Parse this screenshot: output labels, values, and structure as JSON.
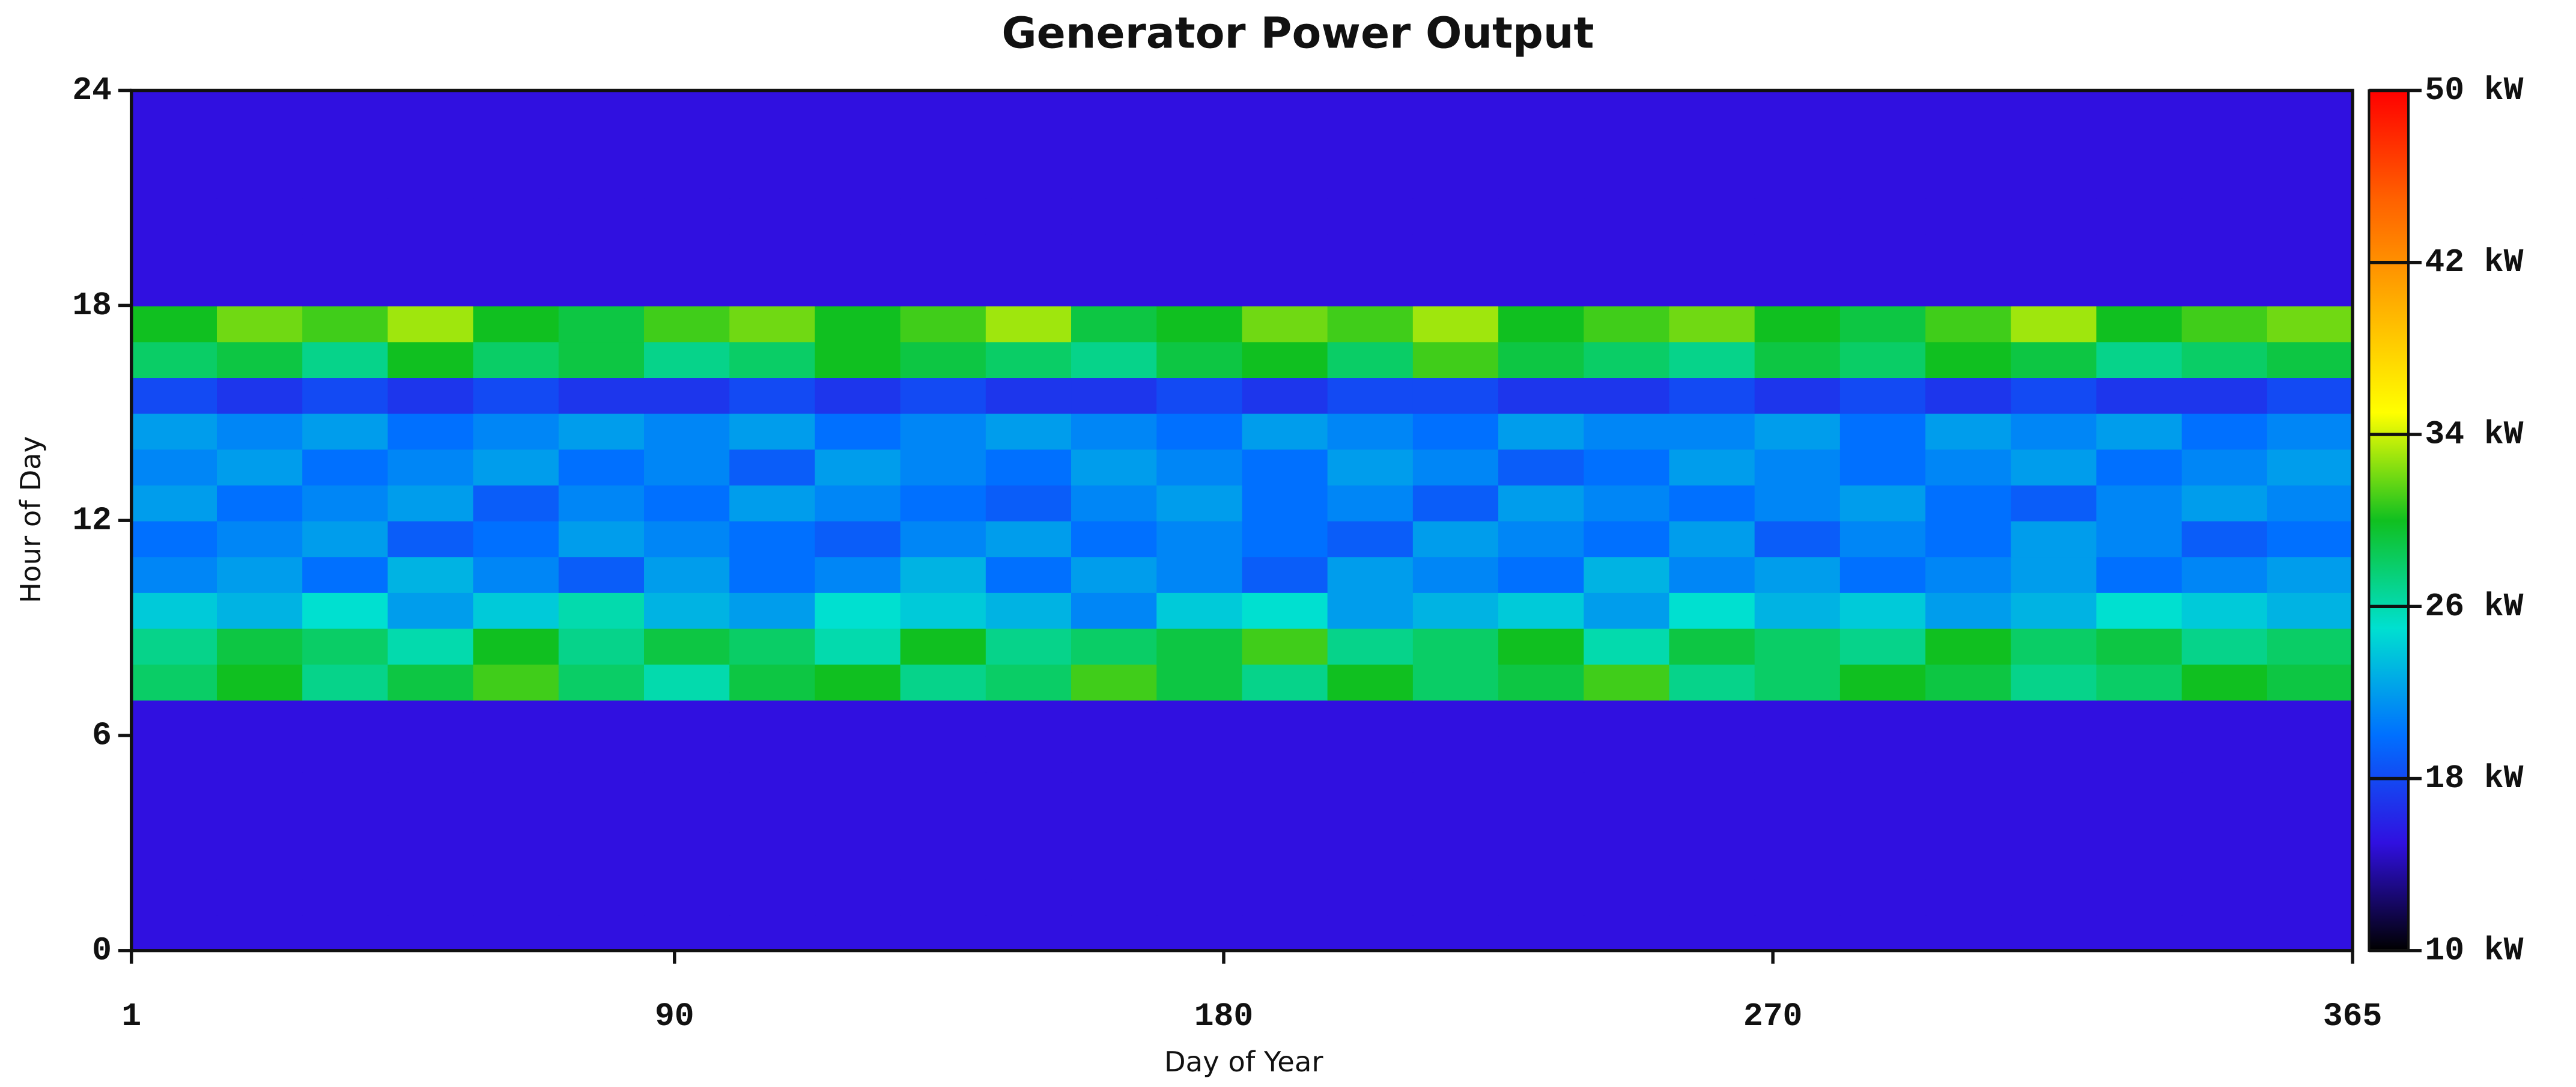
{
  "chart_data": {
    "type": "heatmap",
    "title": "Generator Power Output",
    "x_label": "Day of Year",
    "y_label": "Hour of Day",
    "xlim": [
      1,
      365
    ],
    "ylim": [
      0,
      24
    ],
    "xticks": [
      1,
      90,
      180,
      270,
      365
    ],
    "yticks": [
      0,
      6,
      12,
      18,
      24
    ],
    "x_bins": [
      1,
      15,
      29,
      43,
      57,
      71,
      85,
      99,
      113,
      127,
      141,
      155,
      169,
      183,
      197,
      211,
      225,
      239,
      253,
      267,
      281,
      295,
      309,
      323,
      337,
      351,
      365
    ],
    "y_bins": [
      0,
      1,
      2,
      3,
      4,
      5,
      6,
      7,
      8,
      9,
      10,
      11,
      12,
      13,
      14,
      15,
      16,
      17,
      18,
      19,
      20,
      21,
      22,
      23,
      24
    ],
    "zlim": [
      10,
      50
    ],
    "colorbar_ticks": [
      {
        "value": 10,
        "label": "10 kW"
      },
      {
        "value": 18,
        "label": "18 kW"
      },
      {
        "value": 26,
        "label": "26 kW"
      },
      {
        "value": 34,
        "label": "34 kW"
      },
      {
        "value": 42,
        "label": "42 kW"
      },
      {
        "value": 50,
        "label": "50 kW"
      }
    ],
    "colors": [
      "#000000",
      "#3010e0",
      "#0070ff",
      "#00e0d0",
      "#10c020",
      "#ffff00",
      "#ffb000",
      "#ff6000",
      "#ff0000"
    ],
    "z": [
      [
        15,
        15,
        15,
        15,
        15,
        15,
        15,
        15,
        15,
        15,
        15,
        15,
        15,
        15,
        15,
        15,
        15,
        15,
        15,
        15,
        15,
        15,
        15,
        15,
        15,
        15
      ],
      [
        15,
        15,
        15,
        15,
        15,
        15,
        15,
        15,
        15,
        15,
        15,
        15,
        15,
        15,
        15,
        15,
        15,
        15,
        15,
        15,
        15,
        15,
        15,
        15,
        15,
        15
      ],
      [
        15,
        15,
        15,
        15,
        15,
        15,
        15,
        15,
        15,
        15,
        15,
        15,
        15,
        15,
        15,
        15,
        15,
        15,
        15,
        15,
        15,
        15,
        15,
        15,
        15,
        15
      ],
      [
        15,
        15,
        15,
        15,
        15,
        15,
        15,
        15,
        15,
        15,
        15,
        15,
        15,
        15,
        15,
        15,
        15,
        15,
        15,
        15,
        15,
        15,
        15,
        15,
        15,
        15
      ],
      [
        15,
        15,
        15,
        15,
        15,
        15,
        15,
        15,
        15,
        15,
        15,
        15,
        15,
        15,
        15,
        15,
        15,
        15,
        15,
        15,
        15,
        15,
        15,
        15,
        15,
        15
      ],
      [
        15,
        15,
        15,
        15,
        15,
        15,
        15,
        15,
        15,
        15,
        15,
        15,
        15,
        15,
        15,
        15,
        15,
        15,
        15,
        15,
        15,
        15,
        15,
        15,
        15,
        15
      ],
      [
        15,
        15,
        15,
        15,
        15,
        15,
        15,
        15,
        15,
        15,
        15,
        15,
        15,
        15,
        15,
        15,
        15,
        15,
        15,
        15,
        15,
        15,
        15,
        15,
        15,
        15
      ],
      [
        28,
        30,
        27,
        29,
        31,
        28,
        26,
        29,
        30,
        27,
        28,
        31,
        29,
        27,
        30,
        28,
        29,
        31,
        27,
        28,
        30,
        29,
        27,
        28,
        30,
        29
      ],
      [
        27,
        29,
        28,
        26,
        30,
        27,
        29,
        28,
        26,
        30,
        27,
        28,
        29,
        31,
        27,
        28,
        30,
        26,
        29,
        28,
        27,
        30,
        28,
        29,
        27,
        28
      ],
      [
        24,
        23,
        25,
        22,
        24,
        26,
        23,
        22,
        25,
        24,
        23,
        21,
        24,
        25,
        22,
        23,
        24,
        22,
        25,
        23,
        24,
        22,
        23,
        25,
        24,
        23
      ],
      [
        21,
        22,
        20,
        23,
        21,
        19,
        22,
        20,
        21,
        23,
        20,
        22,
        21,
        19,
        22,
        21,
        20,
        23,
        21,
        22,
        20,
        21,
        22,
        20,
        21,
        22
      ],
      [
        20,
        21,
        22,
        19,
        20,
        22,
        21,
        20,
        19,
        21,
        22,
        20,
        21,
        20,
        19,
        22,
        21,
        20,
        22,
        19,
        21,
        20,
        22,
        21,
        19,
        20
      ],
      [
        22,
        20,
        21,
        22,
        19,
        21,
        20,
        22,
        21,
        20,
        19,
        21,
        22,
        20,
        21,
        19,
        22,
        21,
        20,
        21,
        22,
        20,
        19,
        21,
        22,
        21
      ],
      [
        21,
        22,
        20,
        21,
        22,
        20,
        21,
        19,
        22,
        21,
        20,
        22,
        21,
        20,
        22,
        21,
        19,
        20,
        22,
        21,
        20,
        21,
        22,
        20,
        21,
        22
      ],
      [
        22,
        21,
        22,
        20,
        21,
        22,
        21,
        22,
        20,
        21,
        22,
        21,
        20,
        22,
        21,
        20,
        22,
        21,
        21,
        22,
        20,
        22,
        21,
        22,
        20,
        21
      ],
      [
        18,
        17,
        18,
        17,
        18,
        17,
        17,
        18,
        17,
        18,
        17,
        17,
        18,
        17,
        18,
        18,
        17,
        17,
        18,
        17,
        18,
        17,
        18,
        17,
        17,
        18
      ],
      [
        28,
        29,
        27,
        30,
        28,
        29,
        27,
        28,
        30,
        29,
        28,
        27,
        29,
        30,
        28,
        31,
        29,
        28,
        27,
        29,
        28,
        30,
        29,
        27,
        28,
        29
      ],
      [
        30,
        32,
        31,
        33,
        30,
        29,
        31,
        32,
        30,
        31,
        33,
        29,
        30,
        32,
        31,
        33,
        30,
        31,
        32,
        30,
        29,
        31,
        33,
        30,
        31,
        32
      ],
      [
        15,
        15,
        15,
        15,
        15,
        15,
        15,
        15,
        15,
        15,
        15,
        15,
        15,
        15,
        15,
        15,
        15,
        15,
        15,
        15,
        15,
        15,
        15,
        15,
        15,
        15
      ],
      [
        15,
        15,
        15,
        15,
        15,
        15,
        15,
        15,
        15,
        15,
        15,
        15,
        15,
        15,
        15,
        15,
        15,
        15,
        15,
        15,
        15,
        15,
        15,
        15,
        15,
        15
      ],
      [
        15,
        15,
        15,
        15,
        15,
        15,
        15,
        15,
        15,
        15,
        15,
        15,
        15,
        15,
        15,
        15,
        15,
        15,
        15,
        15,
        15,
        15,
        15,
        15,
        15,
        15
      ],
      [
        15,
        15,
        15,
        15,
        15,
        15,
        15,
        15,
        15,
        15,
        15,
        15,
        15,
        15,
        15,
        15,
        15,
        15,
        15,
        15,
        15,
        15,
        15,
        15,
        15,
        15
      ],
      [
        15,
        15,
        15,
        15,
        15,
        15,
        15,
        15,
        15,
        15,
        15,
        15,
        15,
        15,
        15,
        15,
        15,
        15,
        15,
        15,
        15,
        15,
        15,
        15,
        15,
        15
      ],
      [
        15,
        15,
        15,
        15,
        15,
        15,
        15,
        15,
        15,
        15,
        15,
        15,
        15,
        15,
        15,
        15,
        15,
        15,
        15,
        15,
        15,
        15,
        15,
        15,
        15,
        15
      ]
    ]
  }
}
